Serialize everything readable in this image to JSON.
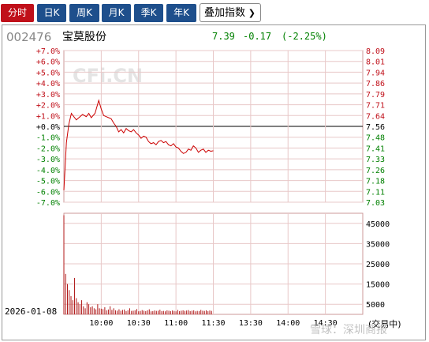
{
  "tabs": [
    {
      "label": "分时",
      "active": true
    },
    {
      "label": "日K",
      "active": false
    },
    {
      "label": "周K",
      "active": false
    },
    {
      "label": "月K",
      "active": false
    },
    {
      "label": "季K",
      "active": false
    },
    {
      "label": "年K",
      "active": false
    }
  ],
  "overlay_select": {
    "label": "叠加指数"
  },
  "stock": {
    "code": "002476",
    "name": "宝莫股份",
    "price": "7.39",
    "change": "-0.17",
    "change_pct": "(-2.25%)"
  },
  "watermark": "CFi.CN",
  "date": "2026-01-08",
  "status_footer": "(交易中)",
  "corner_watermark": "雪球：深圳商报",
  "colors": {
    "up": "#c0101a",
    "down": "#008000",
    "tab": "#1e4f8c",
    "line": "#cc0000",
    "grid": "#cc9999"
  },
  "chart_data": {
    "type": "line",
    "pct_ticks": [
      "+7.0%",
      "+6.0%",
      "+5.0%",
      "+4.0%",
      "+3.0%",
      "+2.0%",
      "+1.0%",
      "+0.0%",
      "-1.0%",
      "-2.0%",
      "-3.0%",
      "-4.0%",
      "-5.0%",
      "-6.0%",
      "-7.0%"
    ],
    "price_ticks": [
      "8.09",
      "8.01",
      "7.94",
      "7.86",
      "7.79",
      "7.71",
      "7.64",
      "7.56",
      "7.48",
      "7.41",
      "7.33",
      "7.26",
      "7.18",
      "7.11",
      "7.03"
    ],
    "time_ticks": [
      "10:00",
      "10:30",
      "11:00",
      "11:30",
      "13:30",
      "14:00",
      "14:30"
    ],
    "volume_ticks": [
      "45000",
      "35000",
      "25000",
      "15000",
      "5000"
    ],
    "price_series": {
      "name": "price",
      "x": [
        0,
        2,
        4,
        6,
        8,
        10,
        12,
        15,
        18,
        20,
        22,
        25,
        28,
        30,
        32,
        34,
        36,
        38,
        40,
        42,
        44,
        46,
        48,
        50,
        52,
        54,
        56,
        58,
        60,
        62,
        64,
        66,
        68,
        70,
        72,
        74,
        76,
        78,
        80,
        82,
        84,
        86,
        88,
        90,
        92,
        94,
        96,
        98,
        100,
        102,
        104,
        106,
        108,
        110,
        112,
        114,
        116,
        118,
        120
      ],
      "y": [
        -5.9,
        -1.5,
        0.2,
        1.2,
        0.9,
        0.6,
        0.8,
        1.1,
        0.9,
        1.2,
        0.8,
        1.2,
        2.4,
        1.6,
        1.0,
        0.9,
        0.8,
        0.7,
        0.3,
        0.0,
        -0.5,
        -0.3,
        -0.6,
        -0.2,
        -0.4,
        -0.5,
        -0.3,
        -0.6,
        -0.8,
        -1.1,
        -0.9,
        -1.0,
        -1.4,
        -1.6,
        -1.5,
        -1.7,
        -1.4,
        -1.3,
        -1.5,
        -1.4,
        -1.7,
        -1.8,
        -1.6,
        -1.9,
        -2.0,
        -2.3,
        -2.5,
        -2.4,
        -2.1,
        -2.2,
        -1.8,
        -2.0,
        -2.4,
        -2.2,
        -2.1,
        -2.4,
        -2.2,
        -2.3,
        -2.25
      ]
    },
    "volume_series": {
      "name": "volume",
      "values": [
        49000,
        20000,
        15000,
        12000,
        9000,
        7000,
        18000,
        8000,
        6000,
        5000,
        7000,
        4000,
        3000,
        6000,
        5000,
        3500,
        4000,
        3000,
        2500,
        5000,
        3000,
        2800,
        2600,
        3500,
        2000,
        2400,
        4000,
        2200,
        3000,
        2000,
        1800,
        2500,
        1800,
        2200,
        2400,
        1600,
        2000,
        3000,
        1700,
        1800,
        2000,
        2600,
        1500,
        1700,
        2100,
        1800,
        1600,
        2000,
        2500,
        1500,
        1600,
        1900,
        1700,
        1800,
        2300,
        1600,
        1700,
        1500,
        2000,
        1800,
        1600,
        1900,
        1700,
        1500,
        2200,
        1600,
        1800,
        2000,
        1700,
        1900,
        2100,
        1600,
        1800,
        2000,
        1500,
        1700,
        1600,
        2200,
        1800,
        1700,
        2000,
        1600,
        1900,
        1700
      ]
    },
    "pct_range": [
      -7,
      7
    ],
    "volume_range": [
      0,
      50000
    ]
  }
}
